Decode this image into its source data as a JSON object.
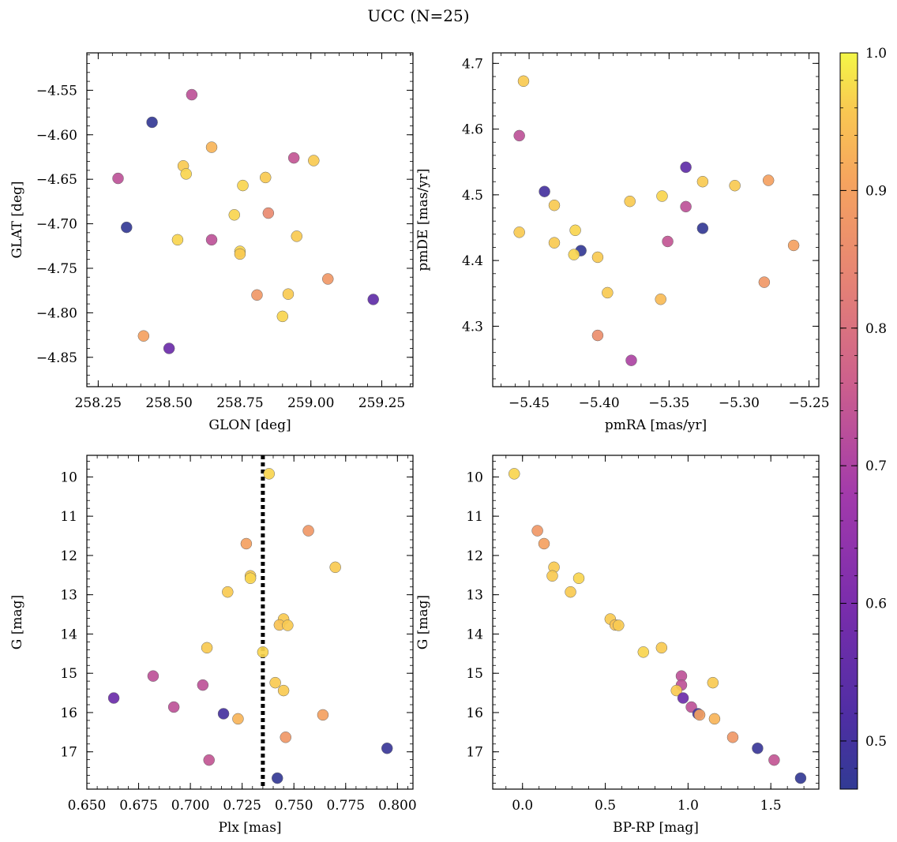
{
  "figure": {
    "title": "UCC (N=25)"
  },
  "colorbar": {
    "cmap": "plasma",
    "range": [
      0.465,
      1.0
    ],
    "ticks": [
      "0.5",
      "0.6",
      "0.7",
      "0.8",
      "0.9",
      "1.0"
    ],
    "tick_values": [
      0.5,
      0.6,
      0.7,
      0.8,
      0.9,
      1.0
    ]
  },
  "chart_data": [
    {
      "type": "scatter",
      "xlabel": "GLON [deg]",
      "ylabel": "GLAT [deg]",
      "xlim": [
        258.21,
        259.36
      ],
      "ylim": [
        -4.883,
        -4.508
      ],
      "xticks": [
        258.25,
        258.5,
        258.75,
        259.0,
        259.25
      ],
      "xticklabels": [
        "258.25",
        "258.50",
        "258.75",
        "259.00",
        "259.25"
      ],
      "yticks": [
        -4.55,
        -4.6,
        -4.65,
        -4.7,
        -4.75,
        -4.8,
        -4.85
      ],
      "yticklabels": [
        "−4.55",
        "−4.60",
        "−4.65",
        "−4.70",
        "−4.75",
        "−4.80",
        "−4.85"
      ],
      "points": [
        {
          "x": 258.58,
          "y": -4.555,
          "c": 0.73
        },
        {
          "x": 258.44,
          "y": -4.586,
          "c": 0.47
        },
        {
          "x": 258.65,
          "y": -4.614,
          "c": 0.93
        },
        {
          "x": 258.94,
          "y": -4.626,
          "c": 0.74
        },
        {
          "x": 259.01,
          "y": -4.629,
          "c": 0.96
        },
        {
          "x": 258.55,
          "y": -4.635,
          "c": 0.96
        },
        {
          "x": 258.56,
          "y": -4.644,
          "c": 0.97
        },
        {
          "x": 258.32,
          "y": -4.649,
          "c": 0.73
        },
        {
          "x": 258.84,
          "y": -4.648,
          "c": 0.96
        },
        {
          "x": 258.76,
          "y": -4.657,
          "c": 0.97
        },
        {
          "x": 258.73,
          "y": -4.69,
          "c": 0.97
        },
        {
          "x": 258.85,
          "y": -4.688,
          "c": 0.85
        },
        {
          "x": 258.35,
          "y": -4.704,
          "c": 0.47
        },
        {
          "x": 258.95,
          "y": -4.714,
          "c": 0.96
        },
        {
          "x": 258.53,
          "y": -4.718,
          "c": 0.97
        },
        {
          "x": 258.65,
          "y": -4.718,
          "c": 0.73
        },
        {
          "x": 258.75,
          "y": -4.731,
          "c": 0.97
        },
        {
          "x": 258.75,
          "y": -4.734,
          "c": 0.96
        },
        {
          "x": 259.06,
          "y": -4.762,
          "c": 0.88
        },
        {
          "x": 258.81,
          "y": -4.78,
          "c": 0.88
        },
        {
          "x": 258.92,
          "y": -4.779,
          "c": 0.96
        },
        {
          "x": 259.22,
          "y": -4.785,
          "c": 0.55
        },
        {
          "x": 258.9,
          "y": -4.804,
          "c": 0.97
        },
        {
          "x": 258.41,
          "y": -4.826,
          "c": 0.9
        },
        {
          "x": 258.5,
          "y": -4.84,
          "c": 0.57
        }
      ]
    },
    {
      "type": "scatter",
      "xlabel": "pmRA [mas/yr]",
      "ylabel": "pmDE [mas/yr]",
      "xlim": [
        -5.476,
        -5.243
      ],
      "ylim": [
        4.208,
        4.716
      ],
      "xticks": [
        -5.45,
        -5.4,
        -5.35,
        -5.3,
        -5.25
      ],
      "xticklabels": [
        "−5.45",
        "−5.40",
        "−5.35",
        "−5.30",
        "−5.25"
      ],
      "yticks": [
        4.3,
        4.4,
        4.5,
        4.6,
        4.7
      ],
      "yticklabels": [
        "4.3",
        "4.4",
        "4.5",
        "4.6",
        "4.7"
      ],
      "points": [
        {
          "x": -5.454,
          "y": 4.673,
          "c": 0.96
        },
        {
          "x": -5.457,
          "y": 4.59,
          "c": 0.73
        },
        {
          "x": -5.338,
          "y": 4.542,
          "c": 0.55
        },
        {
          "x": -5.279,
          "y": 4.522,
          "c": 0.9
        },
        {
          "x": -5.326,
          "y": 4.52,
          "c": 0.96
        },
        {
          "x": -5.303,
          "y": 4.514,
          "c": 0.96
        },
        {
          "x": -5.439,
          "y": 4.505,
          "c": 0.5
        },
        {
          "x": -5.355,
          "y": 4.498,
          "c": 0.97
        },
        {
          "x": -5.378,
          "y": 4.49,
          "c": 0.96
        },
        {
          "x": -5.432,
          "y": 4.484,
          "c": 0.96
        },
        {
          "x": -5.338,
          "y": 4.482,
          "c": 0.73
        },
        {
          "x": -5.326,
          "y": 4.449,
          "c": 0.47
        },
        {
          "x": -5.417,
          "y": 4.446,
          "c": 0.97
        },
        {
          "x": -5.457,
          "y": 4.443,
          "c": 0.96
        },
        {
          "x": -5.351,
          "y": 4.429,
          "c": 0.74
        },
        {
          "x": -5.432,
          "y": 4.427,
          "c": 0.96
        },
        {
          "x": -5.261,
          "y": 4.423,
          "c": 0.9
        },
        {
          "x": -5.413,
          "y": 4.415,
          "c": 0.47
        },
        {
          "x": -5.418,
          "y": 4.409,
          "c": 0.97
        },
        {
          "x": -5.401,
          "y": 4.405,
          "c": 0.96
        },
        {
          "x": -5.282,
          "y": 4.367,
          "c": 0.88
        },
        {
          "x": -5.394,
          "y": 4.351,
          "c": 0.96
        },
        {
          "x": -5.356,
          "y": 4.341,
          "c": 0.94
        },
        {
          "x": -5.401,
          "y": 4.286,
          "c": 0.86
        },
        {
          "x": -5.377,
          "y": 4.248,
          "c": 0.7
        }
      ]
    },
    {
      "type": "scatter",
      "xlabel": "Plx [mas]",
      "ylabel": "G [mag]",
      "xlim": [
        0.65,
        0.8075
      ],
      "ylim": [
        17.95,
        9.45
      ],
      "xticks": [
        0.65,
        0.675,
        0.7,
        0.725,
        0.75,
        0.775,
        0.8
      ],
      "xticklabels": [
        "0.650",
        "0.675",
        "0.700",
        "0.725",
        "0.750",
        "0.775",
        "0.800"
      ],
      "yticks": [
        10,
        11,
        12,
        13,
        14,
        15,
        16,
        17
      ],
      "yticklabels": [
        "10",
        "11",
        "12",
        "13",
        "14",
        "15",
        "16",
        "17"
      ],
      "vline": 0.735,
      "points": [
        {
          "x": 0.738,
          "y": 9.92,
          "c": 0.97
        },
        {
          "x": 0.757,
          "y": 11.37,
          "c": 0.88
        },
        {
          "x": 0.727,
          "y": 11.7,
          "c": 0.9
        },
        {
          "x": 0.77,
          "y": 12.3,
          "c": 0.96
        },
        {
          "x": 0.729,
          "y": 12.52,
          "c": 0.96
        },
        {
          "x": 0.729,
          "y": 12.58,
          "c": 0.97
        },
        {
          "x": 0.718,
          "y": 12.93,
          "c": 0.96
        },
        {
          "x": 0.745,
          "y": 13.62,
          "c": 0.96
        },
        {
          "x": 0.743,
          "y": 13.77,
          "c": 0.95
        },
        {
          "x": 0.747,
          "y": 13.78,
          "c": 0.96
        },
        {
          "x": 0.708,
          "y": 14.35,
          "c": 0.96
        },
        {
          "x": 0.735,
          "y": 14.46,
          "c": 0.97
        },
        {
          "x": 0.682,
          "y": 15.07,
          "c": 0.73
        },
        {
          "x": 0.741,
          "y": 15.24,
          "c": 0.96
        },
        {
          "x": 0.706,
          "y": 15.3,
          "c": 0.73
        },
        {
          "x": 0.745,
          "y": 15.44,
          "c": 0.96
        },
        {
          "x": 0.663,
          "y": 15.63,
          "c": 0.57
        },
        {
          "x": 0.692,
          "y": 15.86,
          "c": 0.73
        },
        {
          "x": 0.716,
          "y": 16.03,
          "c": 0.5
        },
        {
          "x": 0.764,
          "y": 16.06,
          "c": 0.9
        },
        {
          "x": 0.723,
          "y": 16.16,
          "c": 0.93
        },
        {
          "x": 0.746,
          "y": 16.63,
          "c": 0.88
        },
        {
          "x": 0.795,
          "y": 16.91,
          "c": 0.48
        },
        {
          "x": 0.709,
          "y": 17.21,
          "c": 0.74
        },
        {
          "x": 0.742,
          "y": 17.67,
          "c": 0.47
        }
      ]
    },
    {
      "type": "scatter",
      "xlabel": "BP-RP [mag]",
      "ylabel": "G [mag]",
      "xlim": [
        -0.18,
        1.79
      ],
      "ylim": [
        17.95,
        9.45
      ],
      "xticks": [
        0.0,
        0.5,
        1.0,
        1.5
      ],
      "xticklabels": [
        "0.0",
        "0.5",
        "1.0",
        "1.5"
      ],
      "yticks": [
        10,
        11,
        12,
        13,
        14,
        15,
        16,
        17
      ],
      "yticklabels": [
        "10",
        "11",
        "12",
        "13",
        "14",
        "15",
        "16",
        "17"
      ],
      "points": [
        {
          "x": -0.05,
          "y": 9.92,
          "c": 0.97
        },
        {
          "x": 0.09,
          "y": 11.37,
          "c": 0.88
        },
        {
          "x": 0.13,
          "y": 11.7,
          "c": 0.9
        },
        {
          "x": 0.19,
          "y": 12.3,
          "c": 0.96
        },
        {
          "x": 0.18,
          "y": 12.52,
          "c": 0.96
        },
        {
          "x": 0.34,
          "y": 12.58,
          "c": 0.97
        },
        {
          "x": 0.29,
          "y": 12.93,
          "c": 0.96
        },
        {
          "x": 0.53,
          "y": 13.62,
          "c": 0.96
        },
        {
          "x": 0.56,
          "y": 13.77,
          "c": 0.95
        },
        {
          "x": 0.58,
          "y": 13.78,
          "c": 0.96
        },
        {
          "x": 0.84,
          "y": 14.35,
          "c": 0.96
        },
        {
          "x": 0.73,
          "y": 14.46,
          "c": 0.97
        },
        {
          "x": 0.96,
          "y": 15.07,
          "c": 0.73
        },
        {
          "x": 1.15,
          "y": 15.24,
          "c": 0.96
        },
        {
          "x": 0.96,
          "y": 15.3,
          "c": 0.73
        },
        {
          "x": 0.93,
          "y": 15.44,
          "c": 0.96
        },
        {
          "x": 0.97,
          "y": 15.63,
          "c": 0.57
        },
        {
          "x": 1.02,
          "y": 15.86,
          "c": 0.73
        },
        {
          "x": 1.06,
          "y": 16.03,
          "c": 0.5
        },
        {
          "x": 1.07,
          "y": 16.06,
          "c": 0.9
        },
        {
          "x": 1.16,
          "y": 16.16,
          "c": 0.93
        },
        {
          "x": 1.27,
          "y": 16.63,
          "c": 0.88
        },
        {
          "x": 1.42,
          "y": 16.91,
          "c": 0.48
        },
        {
          "x": 1.52,
          "y": 17.21,
          "c": 0.74
        },
        {
          "x": 1.68,
          "y": 17.67,
          "c": 0.47
        }
      ]
    }
  ]
}
